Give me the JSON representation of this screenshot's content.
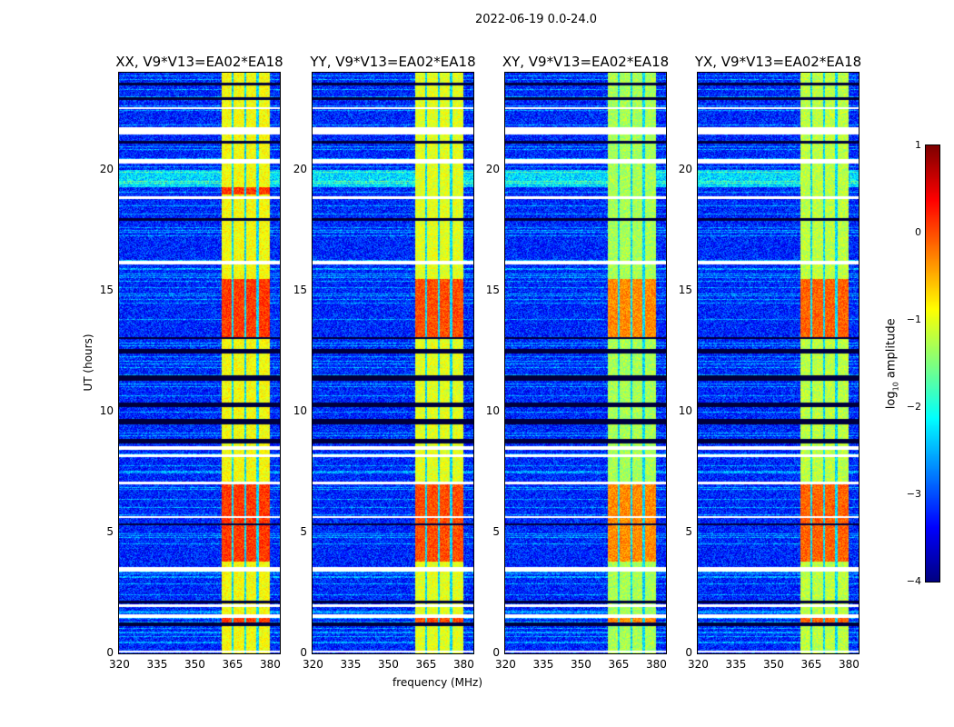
{
  "chart_data": {
    "type": "heatmap",
    "suptitle": "2022-06-19 0.0-24.0",
    "xlabel": "frequency (MHz)",
    "ylabel": "UT (hours)",
    "xlim": [
      320,
      384
    ],
    "ylim": [
      0,
      24
    ],
    "xticks": [
      "320",
      "335",
      "350",
      "365",
      "380"
    ],
    "xtick_values": [
      320,
      335,
      350,
      365,
      380
    ],
    "yticks": [
      "0",
      "5",
      "10",
      "15",
      "20"
    ],
    "ytick_values": [
      0,
      5,
      10,
      15,
      20
    ],
    "panels": [
      {
        "title": "XX, V9*V13=EA02*EA18",
        "band_level": -0.9,
        "peak_level": 0.1
      },
      {
        "title": "YY, V9*V13=EA02*EA18",
        "band_level": -1.0,
        "peak_level": 0.0
      },
      {
        "title": "XY, V9*V13=EA02*EA18",
        "band_level": -1.3,
        "peak_level": -0.3
      },
      {
        "title": "YX, V9*V13=EA02*EA18",
        "band_level": -1.2,
        "peak_level": -0.1
      }
    ],
    "background_level": -3.2,
    "bright_band_mhz": [
      360.5,
      380
    ],
    "band_gaps_mhz": [
      365,
      370,
      375
    ],
    "flagged_hours": [
      [
        0.05,
        0.15
      ],
      [
        1.5,
        1.65
      ],
      [
        1.95,
        2.05
      ],
      [
        3.4,
        3.6
      ],
      [
        5.6,
        5.7
      ],
      [
        7.0,
        7.1
      ],
      [
        8.15,
        8.25
      ],
      [
        8.45,
        8.6
      ],
      [
        16.1,
        16.25
      ],
      [
        20.25,
        20.45
      ],
      [
        21.45,
        21.75
      ],
      [
        22.5,
        22.6
      ],
      [
        18.8,
        18.9
      ]
    ],
    "dark_hours": [
      [
        1.15,
        1.3
      ],
      [
        2.1,
        2.2
      ],
      [
        5.3,
        5.4
      ],
      [
        8.7,
        8.9
      ],
      [
        9.5,
        9.7
      ],
      [
        10.2,
        10.4
      ],
      [
        11.3,
        11.5
      ],
      [
        12.4,
        12.6
      ],
      [
        13.0,
        13.1
      ],
      [
        17.9,
        18.0
      ],
      [
        21.1,
        21.2
      ],
      [
        22.9,
        23.0
      ],
      [
        23.5,
        23.6
      ]
    ],
    "colorbar": {
      "label": "log10 amplitude",
      "label_main": "log",
      "label_sub": "10",
      "label_rest": " amplitude",
      "range": [
        -4,
        1
      ],
      "ticks": [
        "1",
        "0",
        "−1",
        "−2",
        "−3",
        "−4"
      ],
      "tick_values": [
        1,
        0,
        -1,
        -2,
        -3,
        -4
      ],
      "colormap": "jet"
    }
  }
}
